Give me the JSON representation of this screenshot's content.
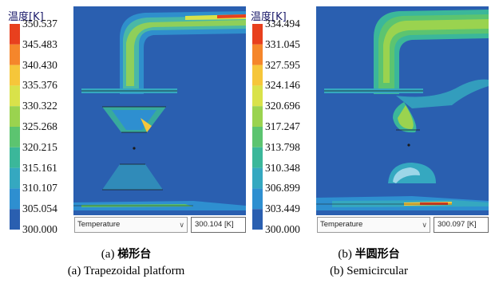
{
  "panels": [
    {
      "legend_title": "温度[K]",
      "legend_values": [
        "350.537",
        "345.483",
        "340.430",
        "335.376",
        "330.322",
        "325.268",
        "320.215",
        "315.161",
        "310.107",
        "305.054",
        "300.000"
      ],
      "variable_select": "Temperature",
      "probe_value": "300.104 [K]",
      "caption_prefix": "(a) ",
      "caption_cn": "梯形台",
      "caption_en": "(a) Trapezoidal platform"
    },
    {
      "legend_title": "温度[K]",
      "legend_values": [
        "334.494",
        "331.045",
        "327.595",
        "324.146",
        "320.696",
        "317.247",
        "313.798",
        "310.348",
        "306.899",
        "303.449",
        "300.000"
      ],
      "variable_select": "Temperature",
      "probe_value": "300.097 [K]",
      "caption_prefix": "(b) ",
      "caption_cn": "半圆形台",
      "caption_en": "(b) Semicircular"
    }
  ],
  "colors": {
    "background_field": "#2a5fb0",
    "colormap": [
      "#e8401e",
      "#f5862b",
      "#f6c63a",
      "#d9e24a",
      "#9ad34f",
      "#5cc470",
      "#3bb79a",
      "#35a8c0",
      "#2e8fd0",
      "#2a5fb0",
      "#1a2a9c"
    ],
    "select_arrow_icon": "chevron-down-icon"
  }
}
